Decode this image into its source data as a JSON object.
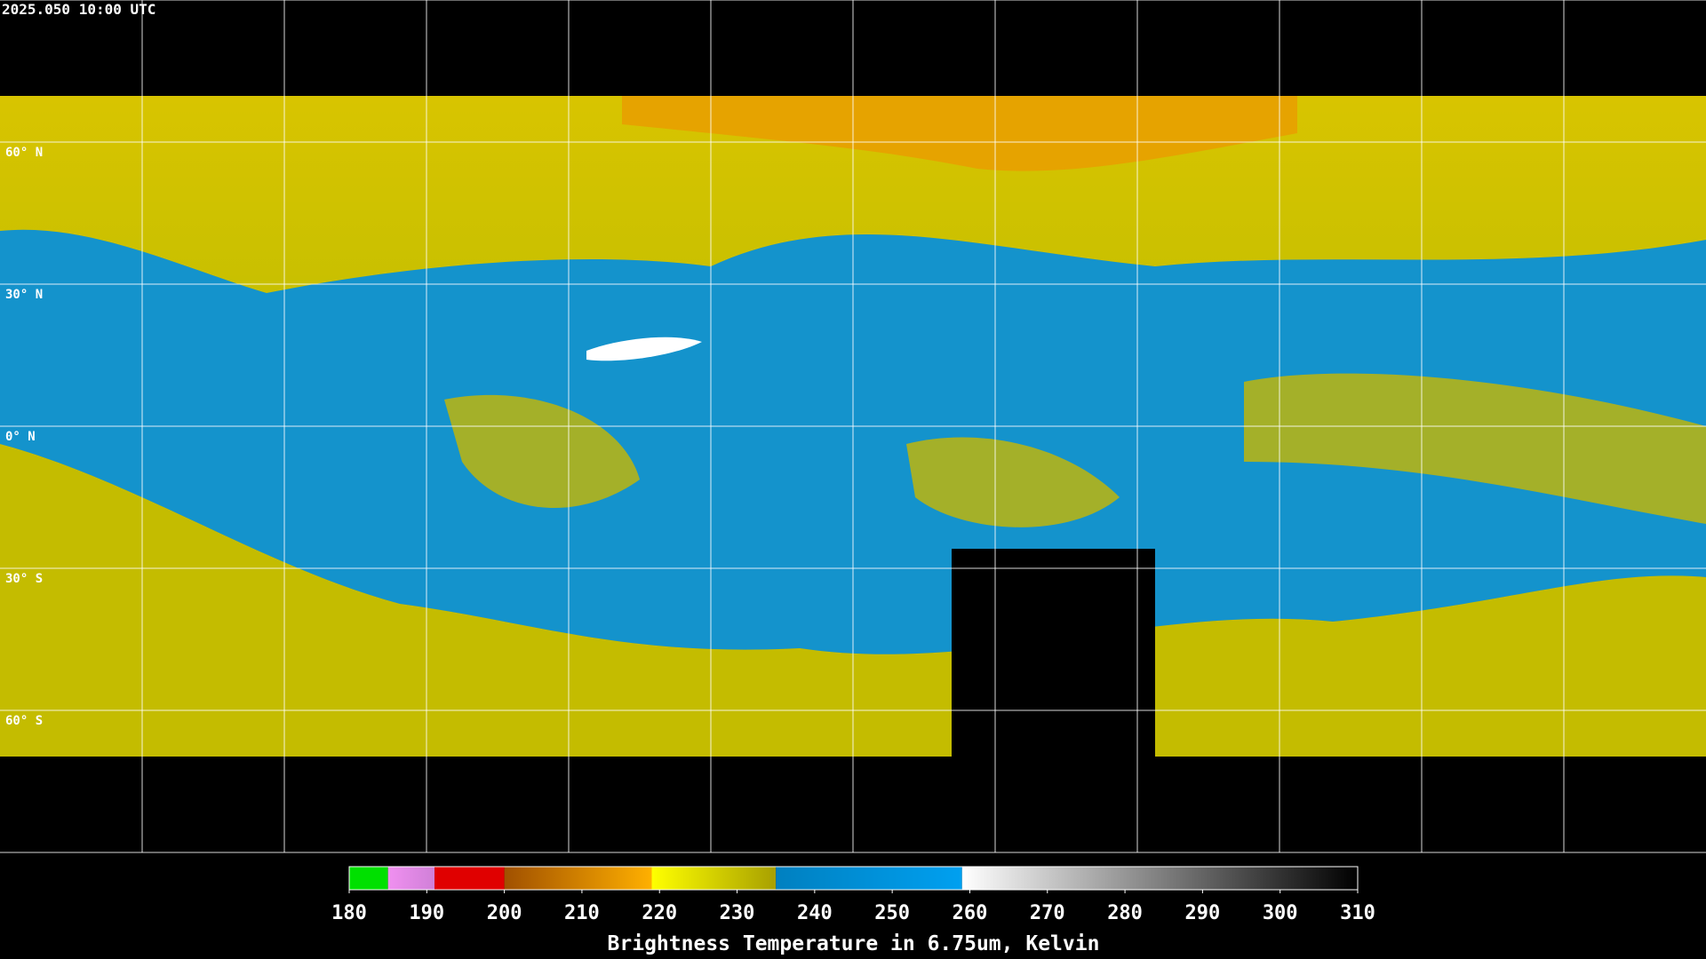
{
  "title": "2025.050 10:00 UTC",
  "graticule": {
    "lat_labels": [
      "60° N",
      "30° N",
      "0° N",
      "30° S",
      "60° S"
    ]
  },
  "colorbar": {
    "label": "Brightness Temperature in 6.75um, Kelvin",
    "range": [
      180,
      310
    ],
    "ticks": [
      180,
      190,
      200,
      210,
      220,
      230,
      240,
      250,
      260,
      270,
      280,
      290,
      300,
      310
    ],
    "segments": [
      {
        "from": 180,
        "to": 185,
        "colors": [
          "#00e000",
          "#00e000"
        ]
      },
      {
        "from": 185,
        "to": 191,
        "colors": [
          "#f090f0",
          "#d080d8"
        ]
      },
      {
        "from": 191,
        "to": 200,
        "colors": [
          "#e00000",
          "#e00000"
        ]
      },
      {
        "from": 200,
        "to": 219,
        "colors": [
          "#a05000",
          "#ffb000"
        ]
      },
      {
        "from": 219,
        "to": 235,
        "colors": [
          "#ffff00",
          "#a8a000"
        ]
      },
      {
        "from": 235,
        "to": 259,
        "colors": [
          "#0080c0",
          "#00a0f0"
        ]
      },
      {
        "from": 259,
        "to": 310,
        "colors": [
          "#ffffff",
          "#000000"
        ]
      }
    ]
  }
}
